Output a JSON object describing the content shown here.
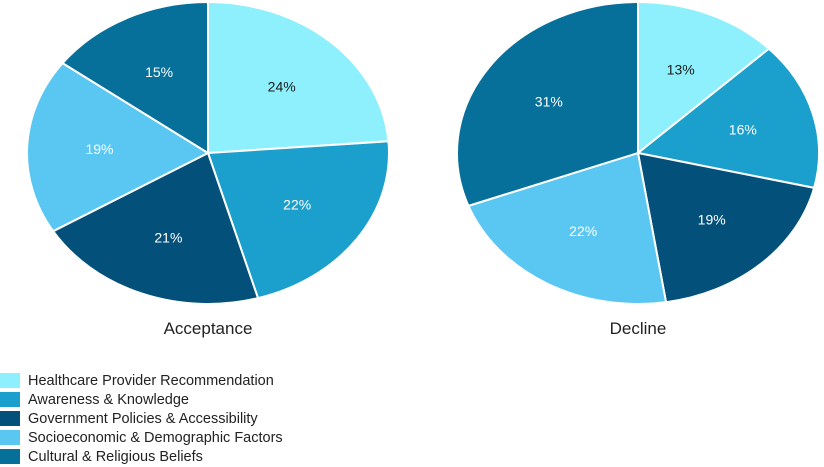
{
  "colors": {
    "Healthcare Provider Recommendation": "#8ef0fc",
    "Awareness & Knowledge": "#1b9fcc",
    "Government Policies & Accessibility": "#03517a",
    "Socioeconomic & Demographic Factors": "#5ac7f3",
    "Cultural & Religious Beliefs": "#06709b"
  },
  "legend": [
    "Healthcare Provider Recommendation",
    "Awareness & Knowledge",
    "Government Policies & Accessibility",
    "Socioeconomic & Demographic Factors",
    "Cultural & Religious Beliefs"
  ],
  "chart_data": [
    {
      "type": "pie",
      "title": "Acceptance",
      "categories": [
        "Healthcare Provider Recommendation",
        "Awareness & Knowledge",
        "Government Policies & Accessibility",
        "Socioeconomic & Demographic Factors",
        "Cultural & Religious Beliefs"
      ],
      "values": [
        24,
        22,
        21,
        19,
        15
      ],
      "labels": [
        "24%",
        "22%",
        "21%",
        "19%",
        "15%"
      ]
    },
    {
      "type": "pie",
      "title": "Decline",
      "categories": [
        "Healthcare Provider Recommendation",
        "Awareness & Knowledge",
        "Government Policies & Accessibility",
        "Socioeconomic & Demographic Factors",
        "Cultural & Religious Beliefs"
      ],
      "values": [
        13,
        16,
        19,
        22,
        31
      ],
      "labels": [
        "13%",
        "16%",
        "19%",
        "22%",
        "31%"
      ]
    }
  ]
}
